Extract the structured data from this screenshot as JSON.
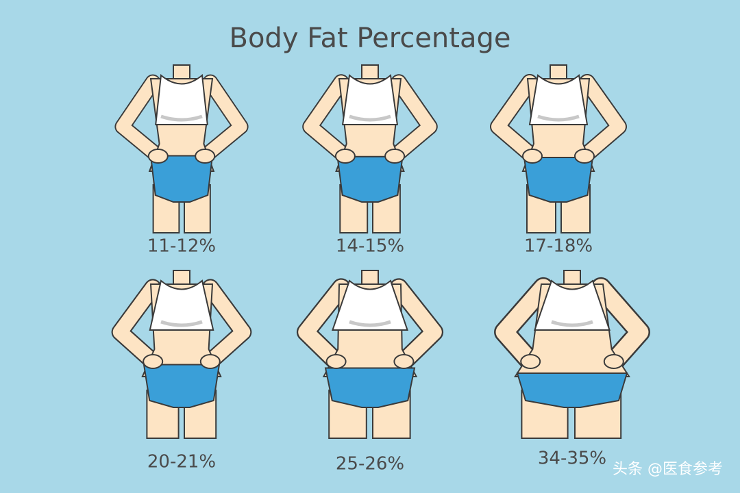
{
  "title": "Body Fat Percentage",
  "figures": [
    {
      "label": "11-12%"
    },
    {
      "label": "14-15%"
    },
    {
      "label": "17-18%"
    },
    {
      "label": "20-21%"
    },
    {
      "label": "25-26%"
    },
    {
      "label": "34-35%"
    }
  ],
  "watermark": "头条 @医食参考"
}
